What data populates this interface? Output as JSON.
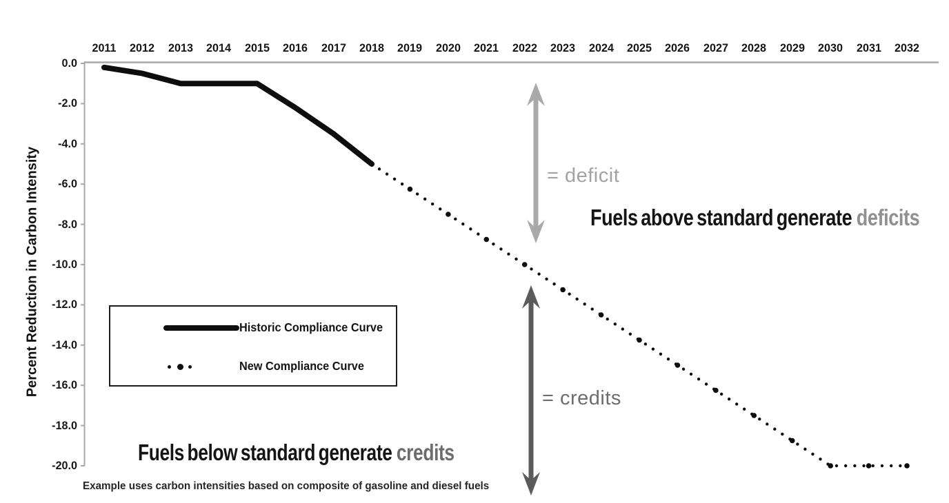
{
  "colors": {
    "curve_black": "#0d0d0d",
    "axis_gray": "#a8a8a8",
    "light_arrow_gray": "#a9a9a9",
    "dark_arrow_gray": "#5b5b5b",
    "deficit_text_gray": "#a3a3a3",
    "credits_text_gray": "#6d6d6d",
    "deficits_word_gray": "#909090",
    "text_black": "#141414"
  },
  "y_axis_title": "Percent Reduction in Carbon Intensity",
  "legend": {
    "items": [
      {
        "label": "Historic Compliance Curve",
        "swatch": "thick-solid-line"
      },
      {
        "label": "New Compliance Curve",
        "swatch": "round-dots"
      }
    ]
  },
  "annotations": {
    "deficit_label": "= deficit",
    "credits_label": "= credits",
    "above_text": "Fuels above standard generate",
    "above_highlight": "deficits",
    "below_text": "Fuels below standard generate",
    "below_highlight": "credits"
  },
  "footnote": "Example uses carbon intensities based on composite of gasoline and diesel fuels",
  "chart_data": {
    "type": "line",
    "title": "",
    "xlabel": "",
    "ylabel": "Percent Reduction in Carbon Intensity",
    "x": [
      2011,
      2012,
      2013,
      2014,
      2015,
      2016,
      2017,
      2018,
      2019,
      2020,
      2021,
      2022,
      2023,
      2024,
      2025,
      2026,
      2027,
      2028,
      2029,
      2030,
      2031,
      2032
    ],
    "x_tick_labels": [
      "2011",
      "2012",
      "2013",
      "2014",
      "2015",
      "2016",
      "2017",
      "2018",
      "2019",
      "2020",
      "2021",
      "2022",
      "2023",
      "2024",
      "2025",
      "2026",
      "2027",
      "2028",
      "2029",
      "2030",
      "2031",
      "2032"
    ],
    "y_ticks": [
      "0.0",
      "-2.0",
      "-4.0",
      "-6.0",
      "-8.0",
      "-10.0",
      "-12.0",
      "-14.0",
      "-16.0",
      "-18.0",
      "-20.0"
    ],
    "ylim": [
      -20,
      0
    ],
    "xlim": [
      2011,
      2032
    ],
    "grid": false,
    "legend_position": "middle-left",
    "x_axis_position": "top",
    "series": [
      {
        "name": "Historic Compliance Curve",
        "style": "solid",
        "x": [
          2011,
          2012,
          2013,
          2014,
          2015,
          2016,
          2017,
          2018
        ],
        "values": [
          -0.2,
          -0.5,
          -1.0,
          -1.0,
          -1.0,
          -2.2,
          -3.5,
          -5.0
        ]
      },
      {
        "name": "New Compliance Curve",
        "style": "dotted",
        "x": [
          2018,
          2019,
          2020,
          2021,
          2022,
          2023,
          2024,
          2025,
          2026,
          2027,
          2028,
          2029,
          2030,
          2031,
          2032
        ],
        "values": [
          -5.0,
          -6.25,
          -7.5,
          -8.75,
          -10.0,
          -11.25,
          -12.5,
          -13.75,
          -15.0,
          -16.25,
          -17.5,
          -18.75,
          -20.0,
          -20.0,
          -20.0
        ]
      }
    ],
    "annotations": [
      "= deficit",
      "= credits",
      "Fuels above standard generate deficits",
      "Fuels below standard generate credits",
      "Example uses carbon intensities based on composite of gasoline and diesel fuels"
    ]
  }
}
